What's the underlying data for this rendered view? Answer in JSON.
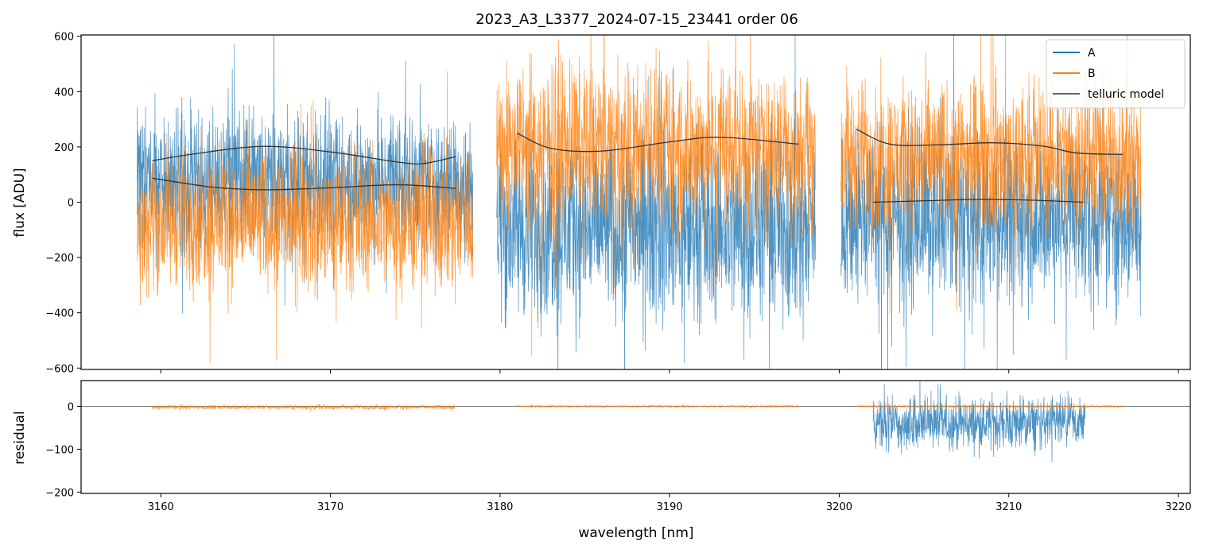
{
  "chart_data": {
    "type": "line",
    "title": "2023_A3_L3377_2024-07-15_23441  order 06",
    "xlabel": "wavelength [nm]",
    "xlim": [
      3155.3,
      3220.7
    ],
    "x_ticks": [
      3160,
      3170,
      3180,
      3190,
      3200,
      3210,
      3220
    ],
    "legend_position": "top-right",
    "colors": {
      "A": "#1f77b4",
      "B": "#ff7f0e",
      "telluric": "#333333"
    },
    "panels": [
      {
        "name": "flux",
        "ylabel": "flux [ADU]",
        "ylim": [
          -605,
          605
        ],
        "y_ticks": [
          -600,
          -400,
          -200,
          0,
          200,
          400,
          600
        ],
        "series": [
          {
            "name": "A",
            "segments": [
              {
                "x_start": 3158.6,
                "x_end": 3178.4,
                "center": 80,
                "spread": 240
              },
              {
                "x_start": 3179.8,
                "x_end": 3198.6,
                "center": -90,
                "spread": 330
              },
              {
                "x_start": 3200.1,
                "x_end": 3217.8,
                "center": -60,
                "spread": 300
              }
            ]
          },
          {
            "name": "B",
            "segments": [
              {
                "x_start": 3158.6,
                "x_end": 3178.4,
                "center": -60,
                "spread": 250
              },
              {
                "x_start": 3179.8,
                "x_end": 3198.6,
                "center": 200,
                "spread": 290
              },
              {
                "x_start": 3200.1,
                "x_end": 3217.8,
                "center": 160,
                "spread": 270
              }
            ]
          },
          {
            "name": "telluric model",
            "curves": [
              {
                "x": [
                  3159.5,
                  3162,
                  3166,
                  3170,
                  3174,
                  3175.5,
                  3177.4
                ],
                "y": [
                  150,
                  175,
                  202,
                  182,
                  145,
                  140,
                  165
                ]
              },
              {
                "x": [
                  3159.5,
                  3163,
                  3166,
                  3170,
                  3174,
                  3177.4
                ],
                "y": [
                  87,
                  55,
                  45,
                  52,
                  63,
                  50
                ]
              },
              {
                "x": [
                  3181,
                  3183,
                  3186,
                  3190,
                  3193,
                  3197.6
                ],
                "y": [
                  250,
                  195,
                  185,
                  218,
                  235,
                  210
                ]
              },
              {
                "x": [
                  3201,
                  3203,
                  3206,
                  3209,
                  3212,
                  3214,
                  3216.7
                ],
                "y": [
                  265,
                  210,
                  208,
                  215,
                  203,
                  178,
                  173
                ]
              },
              {
                "x": [
                  3202,
                  3205,
                  3208,
                  3211,
                  3214.4
                ],
                "y": [
                  0,
                  5,
                  10,
                  8,
                  0
                ]
              }
            ]
          }
        ]
      },
      {
        "name": "residual",
        "ylabel": "residual",
        "ylim": [
          -203,
          60
        ],
        "y_ticks": [
          -200,
          -100,
          0
        ],
        "series": [
          {
            "name": "A",
            "segments": [
              {
                "x_start": 3202.0,
                "x_end": 3214.5,
                "center": -40,
                "spread": 60
              }
            ]
          },
          {
            "name": "B",
            "segments": [
              {
                "x_start": 3159.5,
                "x_end": 3177.4,
                "center": -2,
                "spread": 5
              },
              {
                "x_start": 3181.0,
                "x_end": 3197.6,
                "center": 0,
                "spread": 2
              },
              {
                "x_start": 3201.0,
                "x_end": 3216.7,
                "center": 0,
                "spread": 2
              }
            ]
          }
        ]
      }
    ],
    "legend": [
      "A",
      "B",
      "telluric model"
    ]
  }
}
